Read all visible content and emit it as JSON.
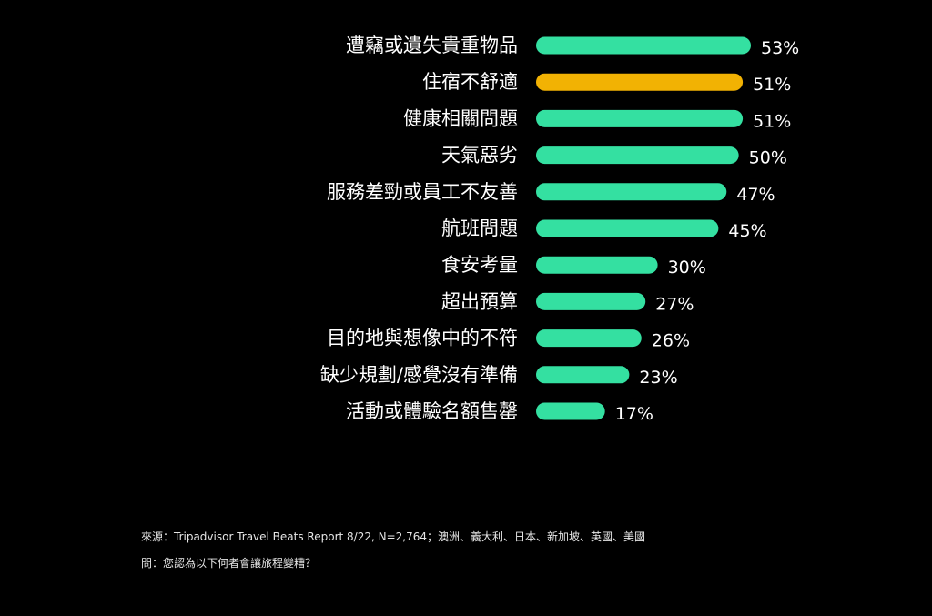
{
  "chart_data": {
    "type": "bar",
    "orientation": "horizontal",
    "categories": [
      "遭竊或遺失貴重物品",
      "住宿不舒適",
      "健康相關問題",
      "天氣惡劣",
      "服務差勁或員工不友善",
      "航班問題",
      "食安考量",
      "超出預算",
      "目的地與想像中的不符",
      "缺少規劃/感覺沒有準備",
      "活動或體驗名額售罄"
    ],
    "values": [
      53,
      51,
      51,
      50,
      47,
      45,
      30,
      27,
      26,
      23,
      17
    ],
    "value_labels": [
      "53%",
      "51%",
      "51%",
      "50%",
      "47%",
      "45%",
      "30%",
      "27%",
      "26%",
      "23%",
      "17%"
    ],
    "highlight_index": 1,
    "xlim": [
      0,
      53
    ],
    "grid": false,
    "legend": "none"
  },
  "colors": {
    "background": "#000000",
    "bar": "#34e0a1",
    "highlight": "#f2b203",
    "text": "#ffffff"
  },
  "footer": {
    "source": "來源：Tripadvisor Travel Beats Report 8/22, N=2,764；澳洲、義大利、日本、新加坡、英國、美國",
    "question": "問：您認為以下何者會讓旅程變糟？"
  }
}
